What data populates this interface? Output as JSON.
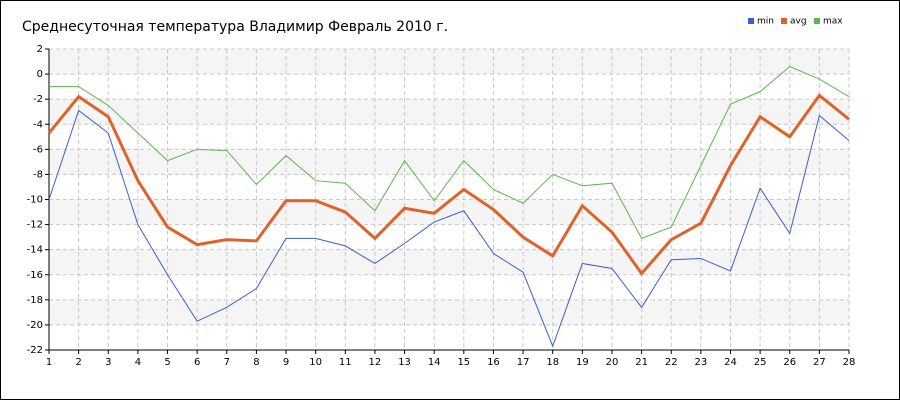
{
  "chart_data": {
    "type": "line",
    "title": "Среднесуточная температура Владимир  Февраль 2010 г.",
    "x": [
      1,
      2,
      3,
      4,
      5,
      6,
      7,
      8,
      9,
      10,
      11,
      12,
      13,
      14,
      15,
      16,
      17,
      18,
      19,
      20,
      21,
      22,
      23,
      24,
      25,
      26,
      27,
      28
    ],
    "xlim": [
      1,
      28
    ],
    "xticks": [
      1,
      2,
      3,
      4,
      5,
      6,
      7,
      8,
      9,
      10,
      11,
      12,
      13,
      14,
      15,
      16,
      17,
      18,
      19,
      20,
      21,
      22,
      23,
      24,
      25,
      26,
      27,
      28
    ],
    "ylim": [
      -22,
      2
    ],
    "yticks": [
      2,
      0,
      -2,
      -4,
      -6,
      -8,
      -10,
      -12,
      -14,
      -16,
      -18,
      -20,
      -22
    ],
    "grid": true,
    "legend": "top-right",
    "series": [
      {
        "name": "min",
        "color": "#3a5fd0",
        "values": [
          -10,
          -2.9,
          -4.7,
          -12,
          -16,
          -19.7,
          -18.6,
          -17.1,
          -13.1,
          -13.1,
          -13.7,
          -15.1,
          -13.5,
          -11.8,
          -10.9,
          -14.3,
          -15.8,
          -21.7,
          -15.1,
          -15.5,
          -18.6,
          -14.8,
          -14.7,
          -15.7,
          -9.1,
          -12.7,
          -3.3,
          -5.3
        ]
      },
      {
        "name": "avg",
        "color": "#e0622a",
        "values": [
          -4.7,
          -1.8,
          -3.4,
          -8.5,
          -12.2,
          -13.6,
          -13.2,
          -13.3,
          -10.1,
          -10.1,
          -11,
          -13.1,
          -10.7,
          -11.1,
          -9.2,
          -10.8,
          -13,
          -14.5,
          -10.5,
          -12.6,
          -15.9,
          -13.2,
          -11.9,
          -7.3,
          -3.4,
          -5,
          -1.7,
          -3.6
        ]
      },
      {
        "name": "max",
        "color": "#5cb84a",
        "values": [
          -1,
          -1,
          -2.5,
          -4.7,
          -6.9,
          -6,
          -6.1,
          -8.8,
          -6.5,
          -8.5,
          -8.7,
          -10.9,
          -6.9,
          -10.1,
          -6.9,
          -9.2,
          -10.3,
          -8,
          -8.9,
          -8.7,
          -13.1,
          -12.2,
          -7.3,
          -2.4,
          -1.4,
          0.6,
          -0.4,
          -1.8
        ]
      }
    ]
  }
}
